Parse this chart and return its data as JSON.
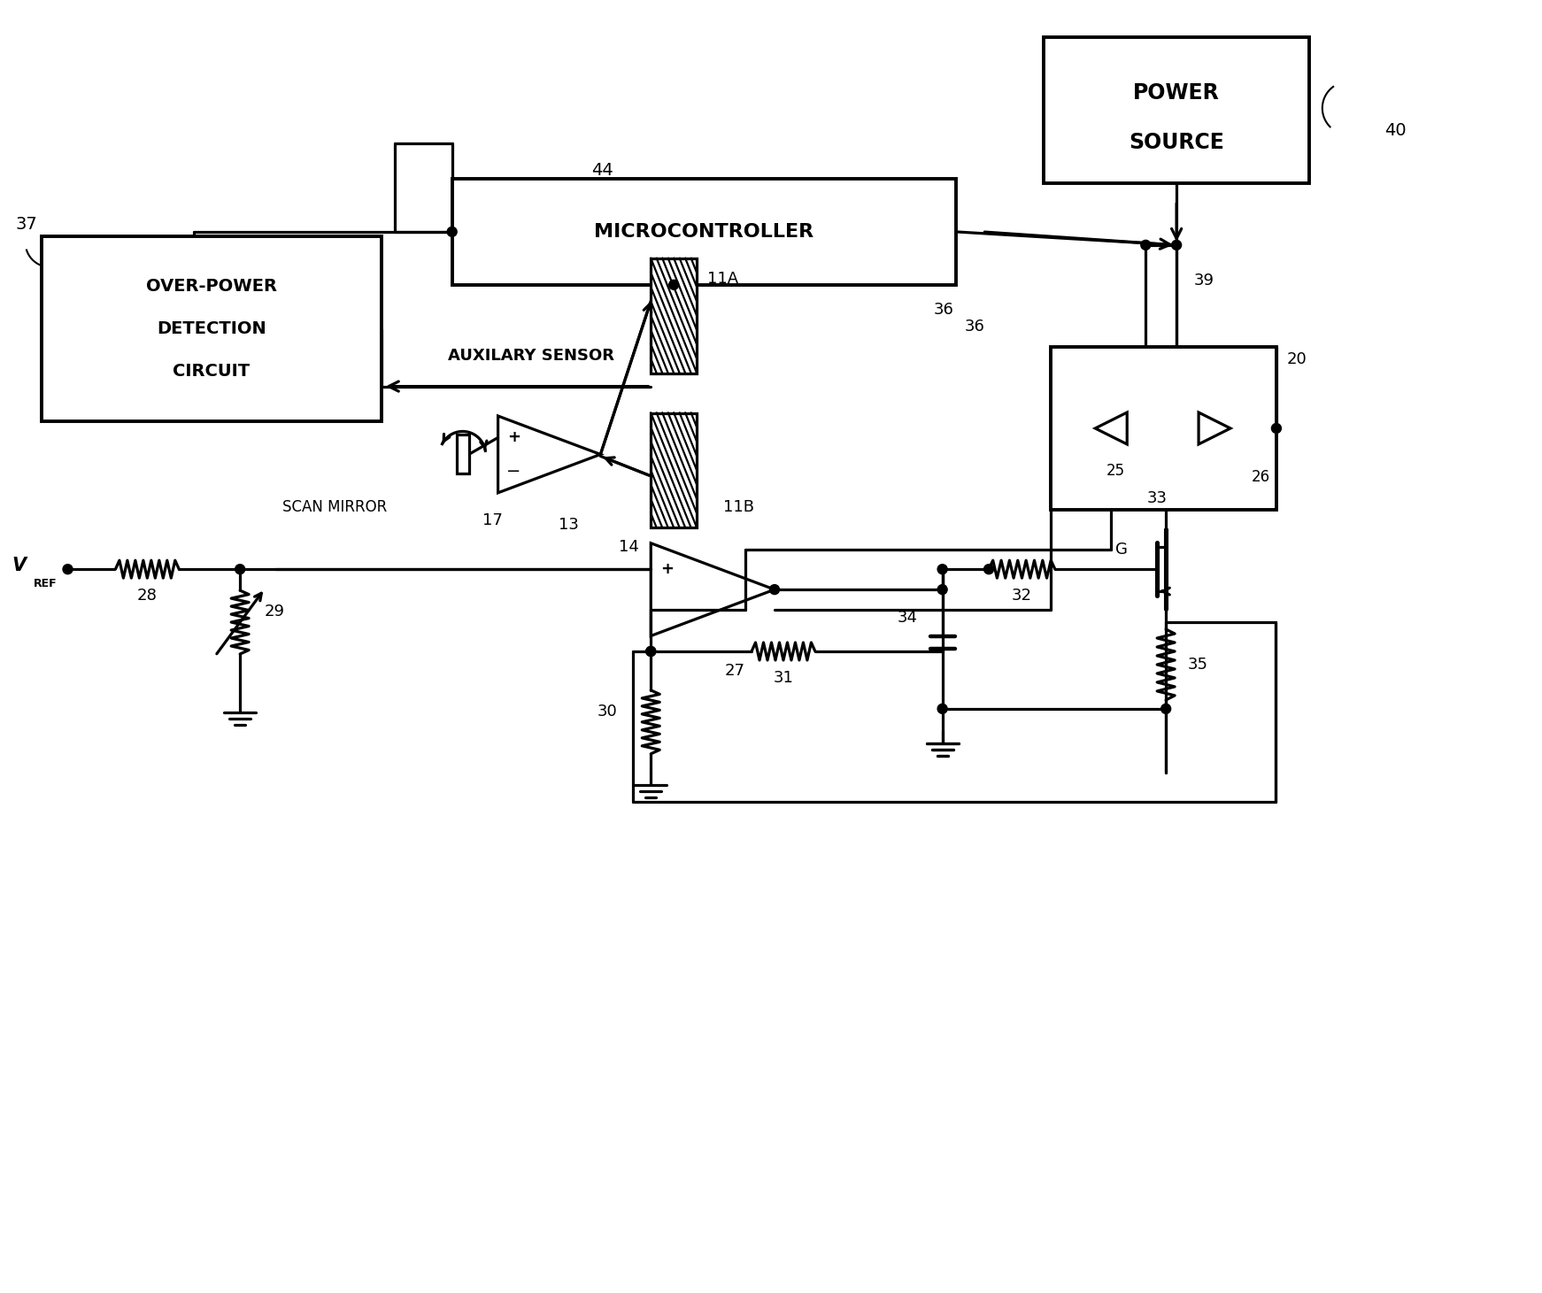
{
  "bg": "#ffffff",
  "lc": "#000000",
  "lw": 2.3,
  "fw": 17.42,
  "fh": 14.61,
  "dpi": 100,
  "labels": {
    "power_source": [
      "POWER",
      "SOURCE"
    ],
    "microcontroller": "MICROCONTROLLER",
    "over_power": [
      "OVER-POWER",
      "DETECTION",
      "CIRCUIT"
    ],
    "auxilary_sensor": "AUXILARY SENSOR",
    "scan_mirror": "SCAN MIRROR",
    "n40": "40",
    "n44": "44",
    "n36": "36",
    "n39": "39",
    "n37": "37",
    "n11a": "11A",
    "n11b": "11B",
    "n13": "13",
    "n14": "14",
    "n17": "17",
    "n20": "20",
    "n25": "25",
    "n26": "26",
    "n27": "27",
    "n28": "28",
    "n29": "29",
    "n30": "30",
    "n31": "31",
    "n32": "32",
    "n33": "33",
    "n34": "34",
    "n35": "35",
    "G": "G"
  }
}
